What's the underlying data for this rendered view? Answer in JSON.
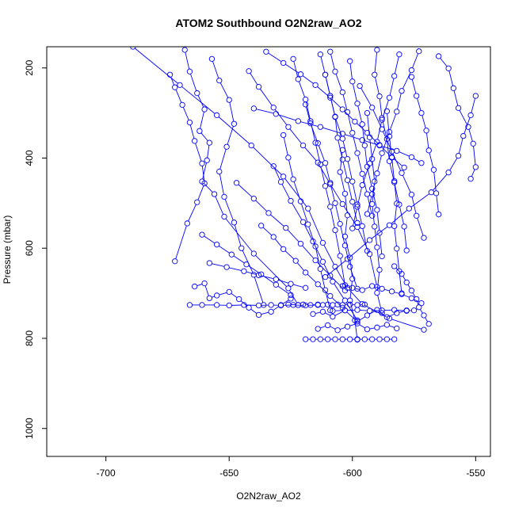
{
  "chart_data": {
    "type": "scatter",
    "title": "ATOM2 Southbound O2N2raw_AO2",
    "xlabel": "O2N2raw_AO2",
    "ylabel": "Pressure (mbar)",
    "xlim": [
      -724,
      -544
    ],
    "ylim": [
      1062,
      153
    ],
    "y_reversed": true,
    "x_ticks": [
      -700,
      -650,
      -600,
      -550
    ],
    "x_tick_labels": [
      "-700",
      "-650",
      "-600",
      "-550"
    ],
    "y_ticks": [
      200,
      400,
      600,
      800,
      1000
    ],
    "y_tick_labels": [
      "200",
      "400",
      "600",
      "800",
      "1000"
    ],
    "grid": false,
    "legend": "none",
    "series_color": "#0000ff",
    "marker": "open-circle",
    "series": [
      {
        "x": [
          -689,
          -670,
          -655,
          -641,
          -628,
          -618,
          -612,
          -607,
          -602,
          -596,
          -585,
          -571
        ],
        "y": [
          153,
          238,
          305,
          372,
          441,
          512,
          588,
          641,
          688,
          724,
          756,
          781
        ]
      },
      {
        "x": [
          -668,
          -666,
          -663,
          -660,
          -662,
          -658,
          -659,
          -661,
          -656,
          -652,
          -640,
          -626,
          -622
        ],
        "y": [
          160,
          208,
          256,
          292,
          340,
          366,
          405,
          452,
          480,
          530,
          612,
          689,
          726
        ]
      },
      {
        "x": [
          -674,
          -672,
          -669,
          -666,
          -664,
          -661,
          -660,
          -663,
          -667,
          -672
        ],
        "y": [
          215,
          243,
          282,
          321,
          362,
          412,
          456,
          498,
          545,
          629
        ]
      },
      {
        "x": [
          -657,
          -654,
          -650,
          -648,
          -651,
          -654,
          -652,
          -648,
          -645,
          -640,
          -636
        ],
        "y": [
          180,
          228,
          271,
          324,
          375,
          430,
          486,
          543,
          600,
          659,
          726
        ]
      },
      {
        "x": [
          -642,
          -638,
          -632,
          -626,
          -620,
          -614,
          -609,
          -604,
          -598,
          -593,
          -590
        ],
        "y": [
          207,
          242,
          288,
          331,
          372,
          410,
          458,
          502,
          553,
          613,
          686
        ]
      },
      {
        "x": [
          -666,
          -661,
          -655,
          -650,
          -644,
          -638,
          -633,
          -629,
          -624,
          -619,
          -614
        ],
        "y": [
          726,
          726,
          726,
          727,
          726,
          727,
          726,
          727,
          726,
          727,
          726
        ]
      },
      {
        "x": [
          -664,
          -660,
          -658,
          -655,
          -650,
          -646,
          -642,
          -638,
          -633,
          -629,
          -625
        ],
        "y": [
          685,
          678,
          711,
          705,
          697,
          713,
          732,
          748,
          741,
          726,
          712
        ]
      },
      {
        "x": [
          -626,
          -622,
          -620,
          -617,
          -614,
          -612,
          -610,
          -608,
          -606,
          -604,
          -601,
          -598,
          -595
        ],
        "y": [
          725,
          726,
          725,
          726,
          725,
          726,
          725,
          726,
          725,
          726,
          725,
          726,
          725
        ]
      },
      {
        "x": [
          -624,
          -622,
          -619,
          -617,
          -615,
          -613,
          -611,
          -609,
          -607,
          -605,
          -603
        ],
        "y": [
          180,
          225,
          270,
          318,
          366,
          414,
          462,
          508,
          560,
          617,
          682
        ]
      },
      {
        "x": [
          -613,
          -611,
          -609,
          -607,
          -604,
          -602,
          -600,
          -598,
          -596,
          -594
        ],
        "y": [
          170,
          215,
          262,
          309,
          357,
          402,
          452,
          503,
          551,
          606
        ]
      },
      {
        "x": [
          -601,
          -600,
          -598,
          -596,
          -595,
          -594,
          -592,
          -590,
          -589,
          -588
        ],
        "y": [
          185,
          230,
          279,
          325,
          372,
          419,
          468,
          515,
          566,
          618
        ]
      },
      {
        "x": [
          -590,
          -591,
          -589,
          -588,
          -586,
          -585,
          -583,
          -581,
          -579,
          -578
        ],
        "y": [
          160,
          215,
          263,
          311,
          358,
          407,
          454,
          503,
          552,
          605
        ]
      },
      {
        "x": [
          -576,
          -574,
          -572,
          -570,
          -569,
          -567,
          -566,
          -565
        ],
        "y": [
          220,
          262,
          300,
          339,
          383,
          426,
          478,
          525
        ]
      },
      {
        "x": [
          -565,
          -561,
          -559,
          -557,
          -553,
          -551,
          -550,
          -552
        ],
        "y": [
          174,
          201,
          245,
          289,
          331,
          368,
          420,
          446
        ]
      },
      {
        "x": [
          -550,
          -552,
          -555,
          -557,
          -561,
          -568,
          -577,
          -585,
          -593,
          -602,
          -611
        ],
        "y": [
          262,
          305,
          351,
          395,
          432,
          476,
          512,
          549,
          582,
          624,
          664
        ]
      },
      {
        "x": [
          -635,
          -628,
          -621,
          -615,
          -609,
          -604,
          -599,
          -594,
          -589,
          -584,
          -579
        ],
        "y": [
          164,
          189,
          214,
          238,
          266,
          292,
          319,
          344,
          371,
          398,
          421
        ]
      },
      {
        "x": [
          -640,
          -631,
          -622,
          -613,
          -604,
          -596,
          -589,
          -582,
          -576,
          -572
        ],
        "y": [
          290,
          302,
          318,
          331,
          346,
          360,
          372,
          384,
          398,
          411
        ]
      },
      {
        "x": [
          -604,
          -605,
          -603,
          -602,
          -603,
          -601,
          -600,
          -601,
          -599,
          -598
        ],
        "y": [
          382,
          431,
          479,
          527,
          574,
          621,
          668,
          716,
          760,
          803
        ]
      },
      {
        "x": [
          -594,
          -593,
          -592,
          -591,
          -592,
          -591,
          -590,
          -589,
          -590,
          -588
        ],
        "y": [
          300,
          354,
          402,
          452,
          502,
          552,
          598,
          648,
          699,
          744
        ]
      },
      {
        "x": [
          -586,
          -585,
          -584,
          -583,
          -582,
          -583,
          -582,
          -581,
          -580
        ],
        "y": [
          296,
          352,
          399,
          451,
          501,
          551,
          601,
          651,
          700
        ]
      },
      {
        "x": [
          -619,
          -617,
          -614,
          -611,
          -609,
          -607,
          -605,
          -603,
          -601,
          -598
        ],
        "y": [
          281,
          323,
          367,
          411,
          455,
          500,
          546,
          594,
          641,
          690
        ]
      },
      {
        "x": [
          -628,
          -626,
          -624,
          -621,
          -618,
          -615,
          -613,
          -611,
          -609
        ],
        "y": [
          349,
          399,
          447,
          496,
          547,
          596,
          646,
          693,
          738
        ]
      },
      {
        "x": [
          -632,
          -629,
          -625,
          -620,
          -616,
          -612,
          -608,
          -603,
          -598
        ],
        "y": [
          418,
          453,
          495,
          542,
          585,
          630,
          674,
          716,
          760
        ]
      },
      {
        "x": [
          -616,
          -612,
          -608,
          -603,
          -598,
          -594,
          -590,
          -586,
          -582,
          -578
        ],
        "y": [
          746,
          741,
          752,
          738,
          763,
          749,
          737,
          753,
          744,
          738
        ]
      },
      {
        "x": [
          -614,
          -610,
          -606,
          -602,
          -598,
          -594,
          -590,
          -586,
          -582
        ],
        "y": [
          779,
          771,
          782,
          774,
          767,
          780,
          776,
          770,
          778
        ]
      },
      {
        "x": [
          -619,
          -616,
          -613,
          -610,
          -607,
          -604,
          -601,
          -598,
          -595,
          -592,
          -589,
          -586,
          -583
        ],
        "y": [
          802,
          802,
          802,
          802,
          802,
          802,
          802,
          802,
          802,
          802,
          802,
          802,
          802
        ]
      },
      {
        "x": [
          -604,
          -600,
          -596,
          -592,
          -588,
          -584,
          -580,
          -576,
          -572
        ],
        "y": [
          684,
          688,
          693,
          684,
          690,
          696,
          702,
          711,
          722
        ]
      },
      {
        "x": [
          -608,
          -603,
          -598,
          -593,
          -588,
          -583,
          -578,
          -575
        ],
        "y": [
          739,
          738,
          737,
          739,
          738,
          737,
          739,
          738
        ]
      },
      {
        "x": [
          -597,
          -592,
          -588,
          -584,
          -580,
          -576,
          -574,
          -571
        ],
        "y": [
          240,
          288,
          336,
          385,
          433,
          481,
          528,
          577
        ]
      },
      {
        "x": [
          -581,
          -583,
          -585,
          -588,
          -590,
          -593,
          -596,
          -598,
          -600
        ],
        "y": [
          170,
          218,
          266,
          315,
          364,
          412,
          460,
          508,
          556
        ]
      },
      {
        "x": [
          -609,
          -607,
          -604,
          -602,
          -600,
          -598,
          -596,
          -594,
          -592
        ],
        "y": [
          164,
          208,
          254,
          298,
          344,
          389,
          435,
          480,
          528
        ]
      },
      {
        "x": [
          -573,
          -576,
          -580,
          -582,
          -585,
          -588,
          -590,
          -592,
          -594
        ],
        "y": [
          163,
          205,
          251,
          297,
          342,
          389,
          434,
          480,
          524
        ]
      },
      {
        "x": [
          -647,
          -640,
          -634,
          -627,
          -621,
          -615,
          -609,
          -603
        ],
        "y": [
          455,
          490,
          522,
          555,
          590,
          627,
          661,
          694
        ]
      },
      {
        "x": [
          -661,
          -655,
          -649,
          -643,
          -637,
          -631,
          -625
        ],
        "y": [
          570,
          592,
          614,
          636,
          658,
          681,
          704
        ]
      },
      {
        "x": [
          -658,
          -651,
          -644,
          -638,
          -631,
          -625,
          -619
        ],
        "y": [
          633,
          642,
          651,
          660,
          669,
          679,
          688
        ]
      },
      {
        "x": [
          -611,
          -609,
          -607,
          -606,
          -604,
          -602,
          -600,
          -598
        ],
        "y": [
          215,
          262,
          308,
          355,
          403,
          449,
          497,
          544
        ]
      },
      {
        "x": [
          -583,
          -580,
          -578,
          -576,
          -574,
          -573,
          -571,
          -569
        ],
        "y": [
          640,
          657,
          676,
          694,
          713,
          731,
          749,
          768
        ]
      },
      {
        "x": [
          -637,
          -632,
          -628,
          -623,
          -619,
          -614,
          -609,
          -604
        ],
        "y": [
          550,
          575,
          602,
          628,
          654,
          680,
          706,
          732
        ]
      }
    ]
  }
}
